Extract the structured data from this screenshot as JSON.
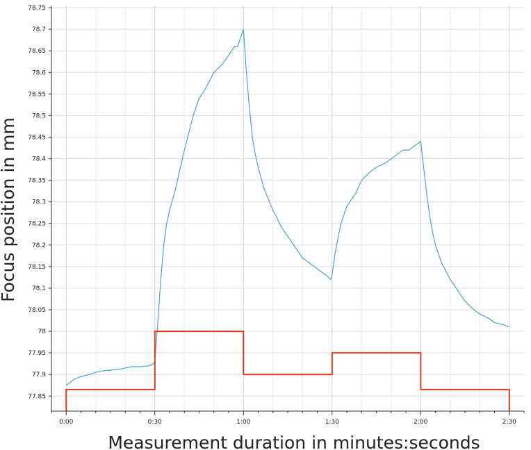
{
  "chart_data": {
    "type": "line",
    "title": "",
    "xlabel": "Measurement duration in minutes:seconds",
    "ylabel": "Focus position in mm",
    "xlim": [
      -5,
      155
    ],
    "ylim": [
      77.815,
      78.755
    ],
    "grid": true,
    "x_ticks": [
      0,
      30,
      60,
      90,
      120,
      150
    ],
    "x_tick_labels": [
      "0:00",
      "0:30",
      "1:00",
      "1:30",
      "2:00",
      "2:30"
    ],
    "y_ticks": [
      77.85,
      77.9,
      77.95,
      78.0,
      78.05,
      78.1,
      78.15,
      78.2,
      78.25,
      78.3,
      78.35,
      78.4,
      78.45,
      78.5,
      78.55,
      78.6,
      78.65,
      78.7,
      78.75
    ],
    "y_tick_labels": [
      "77.85",
      "77.9",
      "77.95",
      "78",
      "78.05",
      "78.1",
      "78.15",
      "78.2",
      "78.25",
      "78.3",
      "78.35",
      "78.4",
      "78.45",
      "78.5",
      "78.55",
      "78.6",
      "78.65",
      "78.7",
      "78.75"
    ],
    "series": [
      {
        "color": "#4aa3d6",
        "x": [
          0,
          1,
          2,
          3,
          5,
          8,
          10,
          12,
          15,
          18,
          20,
          22,
          25,
          28,
          29.5,
          30,
          31,
          32,
          33,
          34,
          35,
          37,
          40,
          43,
          45,
          47,
          50,
          53,
          55,
          57,
          58,
          59,
          60,
          61,
          62,
          63,
          64,
          65,
          67,
          70,
          73,
          75,
          78,
          80,
          82,
          84,
          86,
          88,
          89.5,
          90,
          91,
          93,
          95,
          98,
          100,
          103,
          105,
          108,
          110,
          112,
          114,
          116,
          118,
          120,
          121,
          122,
          123,
          124,
          125,
          127,
          130,
          133,
          135,
          138,
          140,
          143,
          145,
          148,
          150
        ],
        "y": [
          77.875,
          77.88,
          77.885,
          77.89,
          77.895,
          77.9,
          77.905,
          77.908,
          77.91,
          77.912,
          77.915,
          77.918,
          77.918,
          77.92,
          77.925,
          77.93,
          78.02,
          78.12,
          78.2,
          78.25,
          78.28,
          78.33,
          78.42,
          78.5,
          78.54,
          78.56,
          78.6,
          78.62,
          78.64,
          78.66,
          78.66,
          78.68,
          78.7,
          78.6,
          78.52,
          78.45,
          78.41,
          78.38,
          78.33,
          78.28,
          78.24,
          78.22,
          78.19,
          78.17,
          78.16,
          78.15,
          78.14,
          78.13,
          78.12,
          78.13,
          78.18,
          78.25,
          78.29,
          78.32,
          78.35,
          78.37,
          78.38,
          78.39,
          78.4,
          78.41,
          78.42,
          78.42,
          78.43,
          78.44,
          78.38,
          78.32,
          78.27,
          78.23,
          78.2,
          78.16,
          78.12,
          78.09,
          78.07,
          78.05,
          78.04,
          78.03,
          78.02,
          78.015,
          78.01
        ]
      },
      {
        "color": "#e0391c",
        "step": true,
        "x": [
          0,
          0,
          30,
          30,
          60,
          60,
          90,
          90,
          120,
          120,
          150,
          150
        ],
        "y": [
          77.815,
          77.865,
          77.865,
          78.0,
          78.0,
          77.9,
          77.9,
          77.95,
          77.95,
          77.865,
          77.865,
          77.815
        ]
      }
    ]
  }
}
